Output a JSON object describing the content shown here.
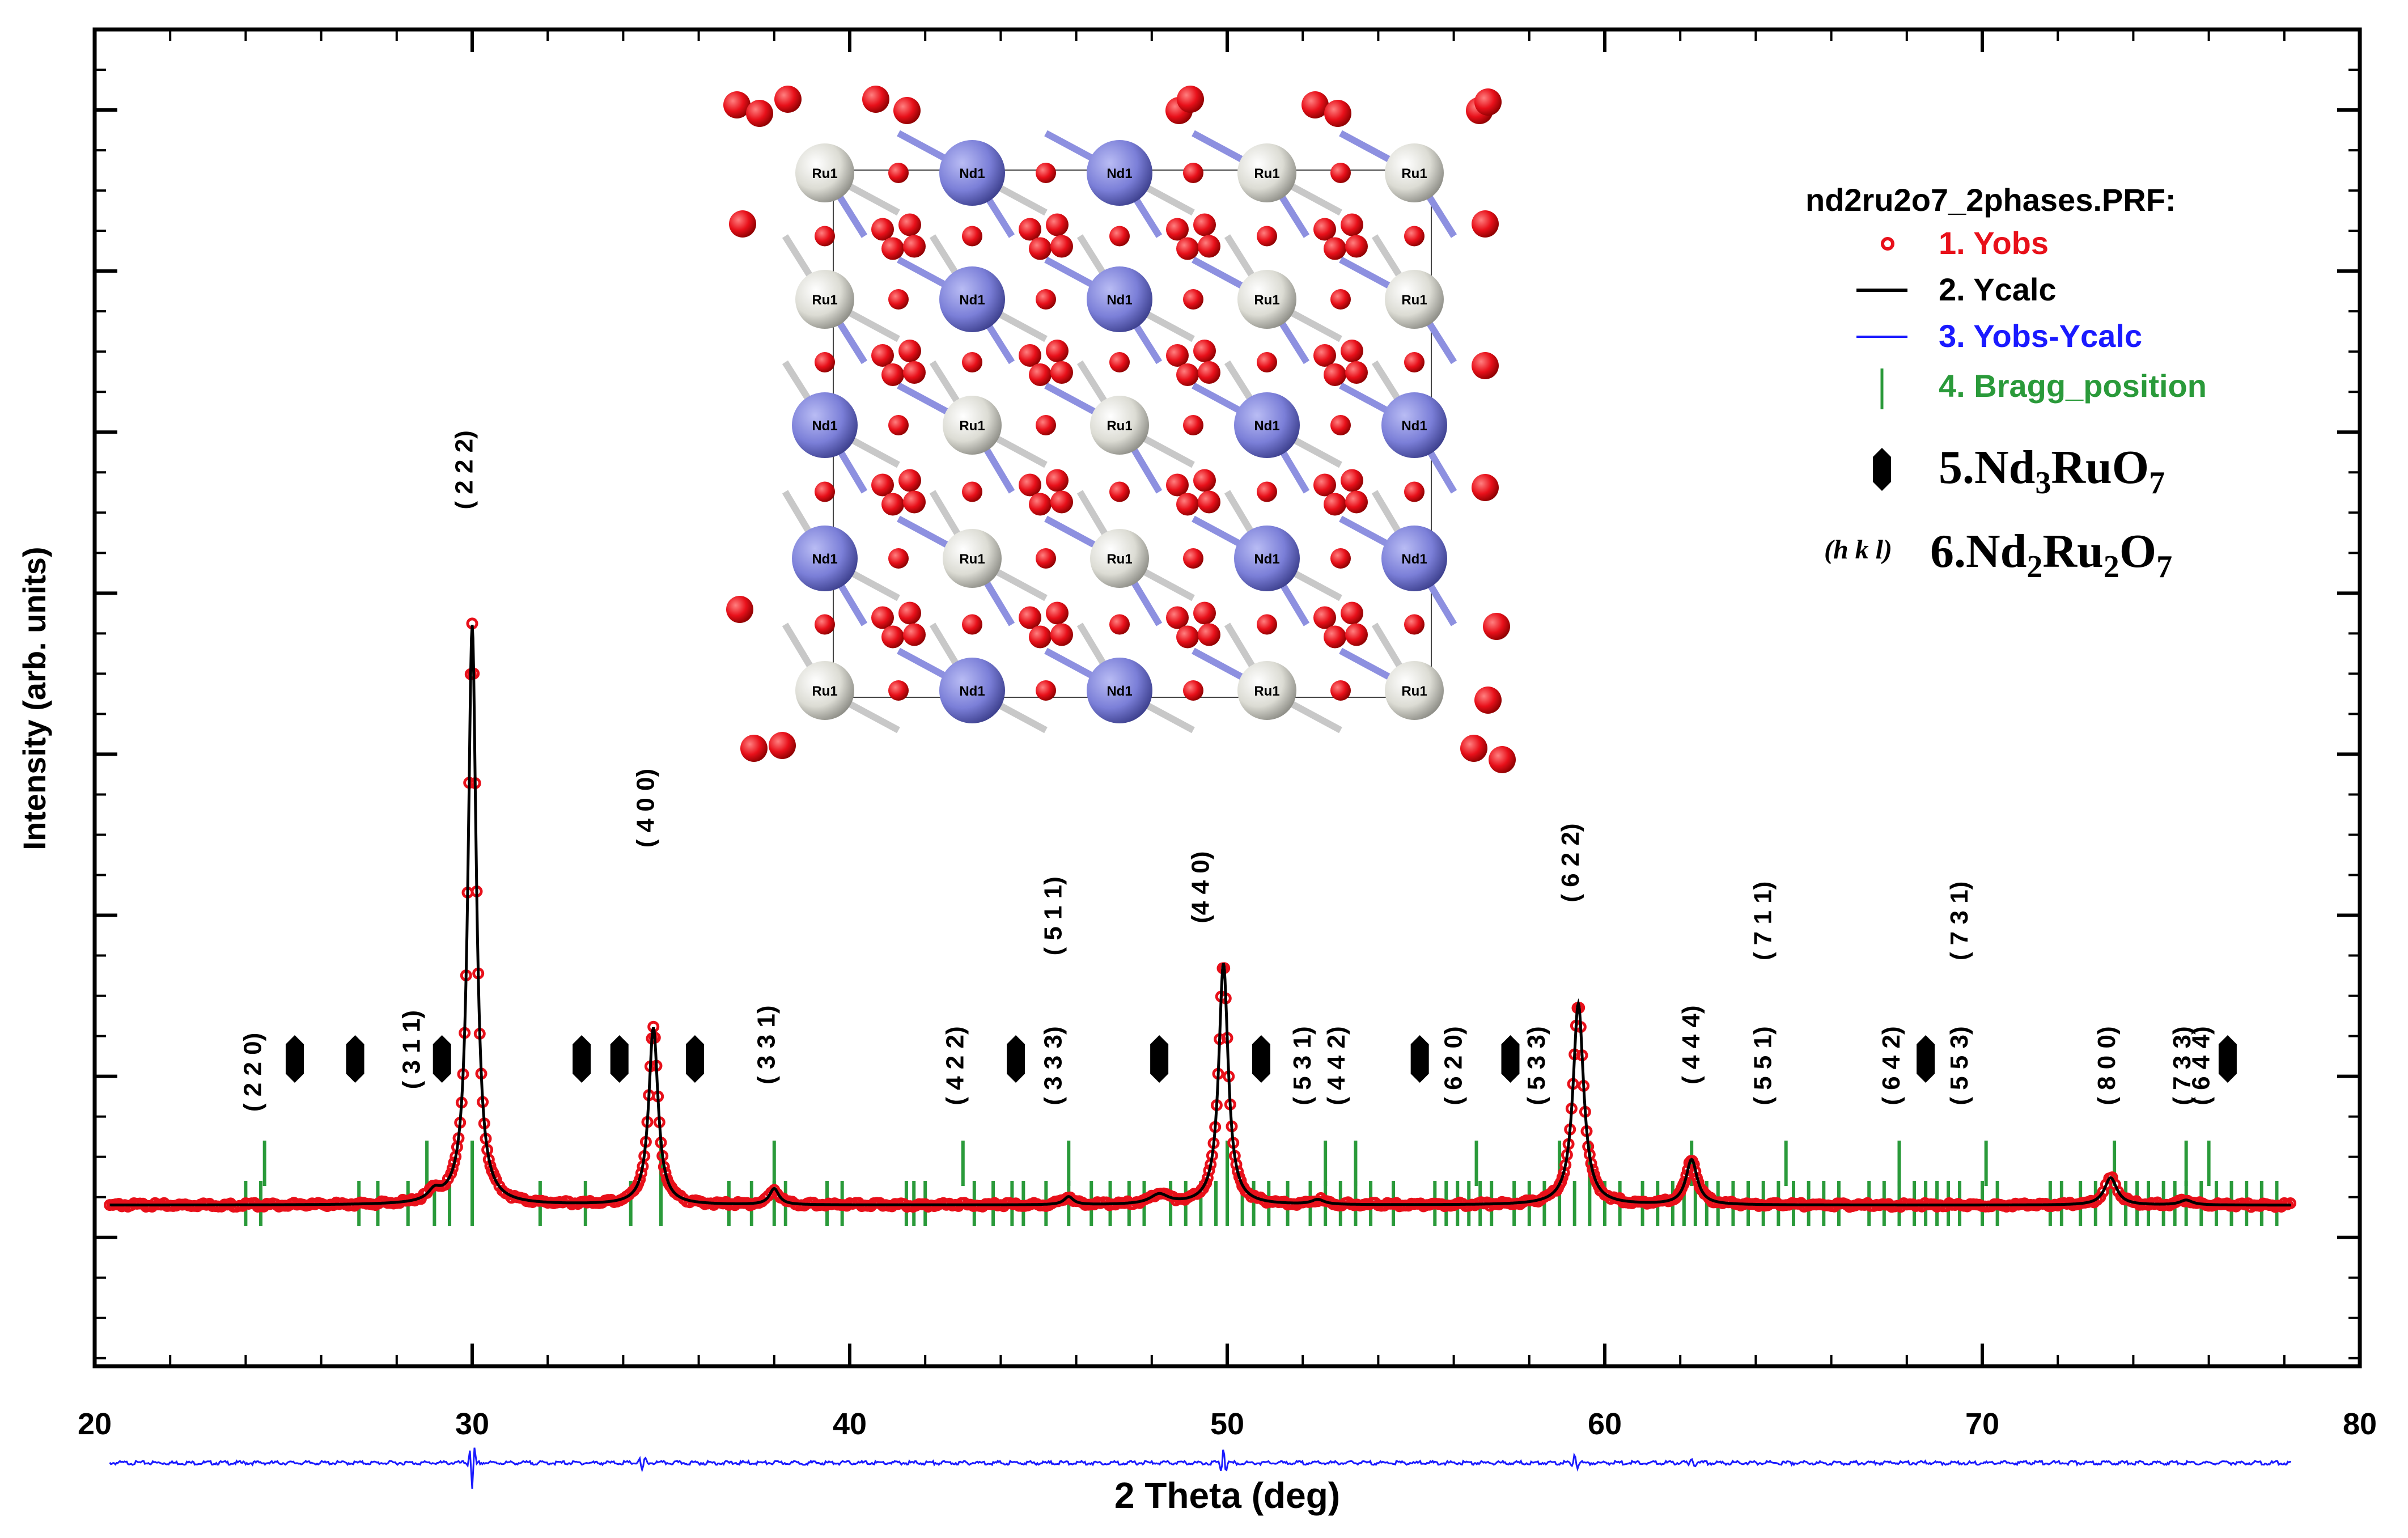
{
  "chart_data": {
    "type": "line",
    "title": "",
    "xlabel": "2 Theta (deg)",
    "ylabel": "Intensity (arb. units)",
    "xlim": [
      20,
      80
    ],
    "ylim": [
      -0.8,
      7.5
    ],
    "x_ticks": [
      "20",
      "30",
      "40",
      "50",
      "60",
      "70",
      "80"
    ],
    "legend": {
      "file": "nd2ru2o7_2phases.PRF:",
      "entries": [
        "1. Yobs",
        "2. Ycalc",
        "3. Yobs-Ycalc",
        "4. Bragg_position"
      ],
      "phase5": {
        "prefix": "5.Nd",
        "s1": "3",
        "mid": "RuO",
        "s2": "7"
      },
      "phase6": {
        "hkl": "(h k l)",
        "prefix": "6.Nd",
        "s1": "2",
        "mid": "Ru",
        "s2": "2",
        "mid2": "O",
        "s3": "7"
      }
    },
    "series": [
      {
        "name": "Yobs",
        "color": "#e8101a",
        "baseline": 0.2,
        "peaks": [
          [
            29.0,
            0.06,
            0.2
          ],
          [
            30.0,
            3.6,
            0.13
          ],
          [
            34.8,
            1.1,
            0.15
          ],
          [
            38.0,
            0.1,
            0.15
          ],
          [
            45.8,
            0.05,
            0.15
          ],
          [
            48.2,
            0.06,
            0.3
          ],
          [
            49.9,
            1.5,
            0.15
          ],
          [
            52.4,
            0.03,
            0.2
          ],
          [
            59.3,
            1.25,
            0.17
          ],
          [
            62.3,
            0.28,
            0.18
          ],
          [
            73.4,
            0.17,
            0.2
          ],
          [
            75.4,
            0.03,
            0.2
          ]
        ]
      },
      {
        "name": "Ycalc",
        "color": "#000000"
      },
      {
        "name": "Yobs-Ycalc",
        "color": "#1a1aff",
        "baseline": -1.4,
        "features": [
          [
            30.0,
            -0.17,
            0.08
          ],
          [
            34.5,
            -0.05,
            0.1
          ],
          [
            49.9,
            0.1,
            0.08
          ],
          [
            59.2,
            0.06,
            0.1
          ],
          [
            62.3,
            0.03,
            0.1
          ]
        ]
      }
    ],
    "bragg_positions": {
      "color": "#2a9a3a",
      "row_upper": [
        24.5,
        28.8,
        30.0,
        35.0,
        38.0,
        43.0,
        45.8,
        50.0,
        52.6,
        53.4,
        56.6,
        58.8,
        59.6,
        62.3,
        64.8,
        67.8,
        70.1,
        73.5,
        75.4,
        76.0
      ],
      "row_lower": [
        24.0,
        24.4,
        27.0,
        27.5,
        28.3,
        29.0,
        29.4,
        30.0,
        31.8,
        33.0,
        34.2,
        35.0,
        36.8,
        37.4,
        38.0,
        38.3,
        39.4,
        39.8,
        41.5,
        41.7,
        42.0,
        43.3,
        43.8,
        44.3,
        44.6,
        45.2,
        45.8,
        46.4,
        46.9,
        47.4,
        47.8,
        48.5,
        48.9,
        49.3,
        49.7,
        50.0,
        50.4,
        50.7,
        51.1,
        51.6,
        52.2,
        52.6,
        53.0,
        53.4,
        53.8,
        54.4,
        55.5,
        55.8,
        56.1,
        56.4,
        56.7,
        57.0,
        57.6,
        58.0,
        58.4,
        58.8,
        59.2,
        59.6,
        60.0,
        60.4,
        61.0,
        61.4,
        61.8,
        62.1,
        62.4,
        62.7,
        63.0,
        63.4,
        63.8,
        64.2,
        64.6,
        65.0,
        65.4,
        65.8,
        66.2,
        67.0,
        67.4,
        67.8,
        68.2,
        68.5,
        68.8,
        69.1,
        69.4,
        70.0,
        70.4,
        71.8,
        72.1,
        72.6,
        73.0,
        73.4,
        73.8,
        74.1,
        74.4,
        74.8,
        75.1,
        75.4,
        75.8,
        76.2,
        76.6,
        77.0,
        77.4,
        77.8
      ]
    },
    "nd3ruo7_markers": [
      25.3,
      26.9,
      29.2,
      32.9,
      33.9,
      35.9,
      44.4,
      48.2,
      50.9,
      55.1,
      57.5,
      68.5,
      76.5
    ],
    "hkl_labels": [
      {
        "text": "( 2 2 0)",
        "x": 24.2,
        "y": 0.78
      },
      {
        "text": "( 3 1 1)",
        "x": 28.4,
        "y": 0.92
      },
      {
        "text": "( 2 2 2)",
        "x": 29.8,
        "y": 4.52
      },
      {
        "text": "( 4 0 0)",
        "x": 34.6,
        "y": 2.42
      },
      {
        "text": "( 3 3 1)",
        "x": 37.8,
        "y": 0.95
      },
      {
        "text": "( 4 2 2)",
        "x": 42.8,
        "y": 0.82
      },
      {
        "text": "( 3 3 3)",
        "x": 45.4,
        "y": 0.82
      },
      {
        "text": "( 5 1 1)",
        "x": 45.4,
        "y": 1.75
      },
      {
        "text": "(4 4 0)",
        "x": 49.3,
        "y": 1.95
      },
      {
        "text": "( 5 3 1)",
        "x": 52.0,
        "y": 0.82
      },
      {
        "text": "( 4 4 2)",
        "x": 52.9,
        "y": 0.82
      },
      {
        "text": "( 6 2 0)",
        "x": 56.0,
        "y": 0.82
      },
      {
        "text": "( 5 3 3)",
        "x": 58.2,
        "y": 0.82
      },
      {
        "text": "( 6 2 2)",
        "x": 59.1,
        "y": 2.08
      },
      {
        "text": "( 4 4 4)",
        "x": 62.3,
        "y": 0.95
      },
      {
        "text": "( 5 5 1)",
        "x": 64.2,
        "y": 0.82
      },
      {
        "text": "( 7 1 1)",
        "x": 64.2,
        "y": 1.72
      },
      {
        "text": "( 6 4 2)",
        "x": 67.6,
        "y": 0.82
      },
      {
        "text": "( 5 5 3)",
        "x": 69.4,
        "y": 0.82
      },
      {
        "text": "( 7 3 1)",
        "x": 69.4,
        "y": 1.72
      },
      {
        "text": "( 8 0 0)",
        "x": 73.3,
        "y": 0.82
      },
      {
        "text": "( 7 3 3)",
        "x": 75.3,
        "y": 0.82
      },
      {
        "text": "( 6 4 4)",
        "x": 75.8,
        "y": 0.82
      }
    ],
    "crystal_inset": {
      "atom_labels": [
        "Ru1",
        "Nd1",
        "Nd1",
        "Ru1",
        "Ru1",
        "Ru1",
        "Nd1",
        "Nd1",
        "Ru1",
        "Ru1",
        "Nd1",
        "Ru1",
        "Ru1",
        "Nd1",
        "Nd1",
        "Nd1",
        "Ru1",
        "Ru1",
        "Nd1",
        "Nd1",
        "Ru1",
        "Nd1",
        "Nd1",
        "Ru1",
        "Ru1"
      ],
      "colors": {
        "ru": "#e4e4de",
        "nd": "#7b7fd8",
        "oxygen": "#e8101a",
        "bond": "#c8c8c8"
      }
    }
  }
}
